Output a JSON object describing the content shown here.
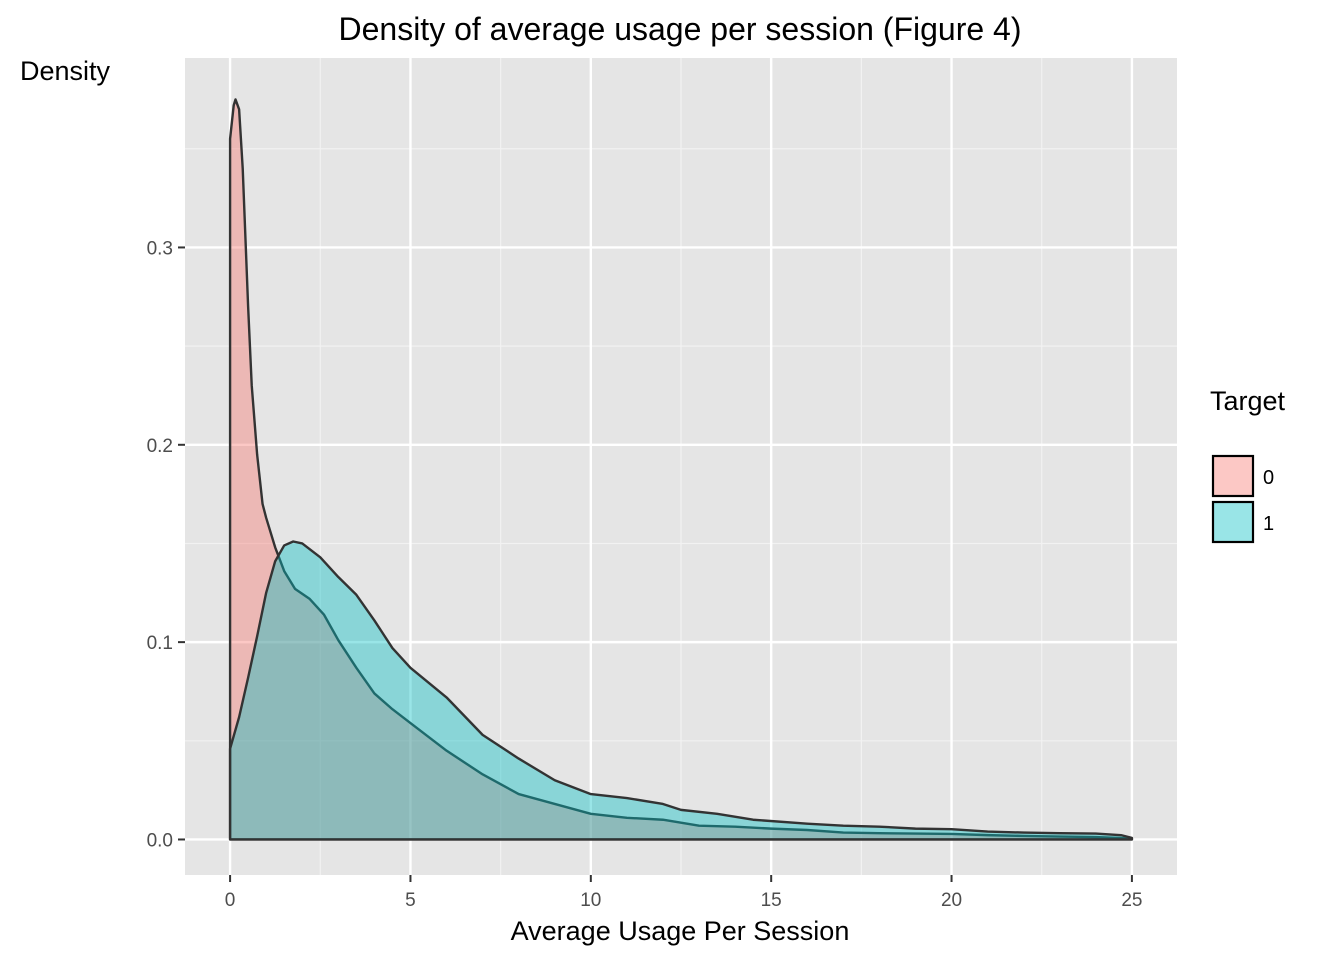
{
  "chart_data": {
    "type": "area",
    "title": "Density of average usage per session (Figure 4)",
    "xlabel": "Average Usage Per Session",
    "ylabel": "Density",
    "xlim": [
      -1.25,
      26.25
    ],
    "ylim": [
      -0.018,
      0.396
    ],
    "x_ticks": [
      0,
      5,
      10,
      15,
      20,
      25
    ],
    "x_tick_labels": [
      "0",
      "5",
      "10",
      "15",
      "20",
      "25"
    ],
    "y_ticks": [
      0.0,
      0.1,
      0.2,
      0.3
    ],
    "y_tick_labels": [
      "0.0",
      "0.1",
      "0.2",
      "0.3"
    ],
    "grid": true,
    "background": "#e5e5e5",
    "legend": {
      "title": "Target",
      "position": "right",
      "entries": [
        "0",
        "1"
      ]
    },
    "series": [
      {
        "name": "0",
        "color": "#F8766D",
        "points": [
          [
            0,
            0.355
          ],
          [
            0.1,
            0.372
          ],
          [
            0.15,
            0.375
          ],
          [
            0.25,
            0.37
          ],
          [
            0.35,
            0.34
          ],
          [
            0.5,
            0.27
          ],
          [
            0.6,
            0.23
          ],
          [
            0.75,
            0.195
          ],
          [
            0.9,
            0.17
          ],
          [
            1.0,
            0.163
          ],
          [
            1.25,
            0.148
          ],
          [
            1.5,
            0.136
          ],
          [
            1.8,
            0.127
          ],
          [
            2.2,
            0.122
          ],
          [
            2.6,
            0.114
          ],
          [
            3.0,
            0.101
          ],
          [
            3.5,
            0.087
          ],
          [
            4.0,
            0.074
          ],
          [
            4.5,
            0.066
          ],
          [
            5.0,
            0.059
          ],
          [
            6.0,
            0.045
          ],
          [
            7.0,
            0.033
          ],
          [
            8.0,
            0.023
          ],
          [
            9.0,
            0.018
          ],
          [
            10.0,
            0.013
          ],
          [
            11.0,
            0.011
          ],
          [
            12.0,
            0.01
          ],
          [
            13.0,
            0.007
          ],
          [
            14.0,
            0.0065
          ],
          [
            15.0,
            0.0055
          ],
          [
            16.0,
            0.0048
          ],
          [
            17.0,
            0.0035
          ],
          [
            18.0,
            0.0032
          ],
          [
            19.0,
            0.003
          ],
          [
            20.0,
            0.0028
          ],
          [
            21.0,
            0.0022
          ],
          [
            22.0,
            0.0018
          ],
          [
            23.0,
            0.0015
          ],
          [
            24.0,
            0.0012
          ],
          [
            25.0,
            0.0005
          ]
        ]
      },
      {
        "name": "1",
        "color": "#00BFC4",
        "points": [
          [
            0,
            0.046
          ],
          [
            0.25,
            0.062
          ],
          [
            0.5,
            0.082
          ],
          [
            0.75,
            0.103
          ],
          [
            1.0,
            0.125
          ],
          [
            1.25,
            0.141
          ],
          [
            1.5,
            0.149
          ],
          [
            1.75,
            0.151
          ],
          [
            2.0,
            0.15
          ],
          [
            2.5,
            0.143
          ],
          [
            3.0,
            0.133
          ],
          [
            3.5,
            0.124
          ],
          [
            4.0,
            0.111
          ],
          [
            4.5,
            0.097
          ],
          [
            5.0,
            0.087
          ],
          [
            6.0,
            0.072
          ],
          [
            7.0,
            0.053
          ],
          [
            8.0,
            0.041
          ],
          [
            9.0,
            0.03
          ],
          [
            10.0,
            0.023
          ],
          [
            11.0,
            0.021
          ],
          [
            12.0,
            0.018
          ],
          [
            12.5,
            0.015
          ],
          [
            13.5,
            0.013
          ],
          [
            14.5,
            0.01
          ],
          [
            16.0,
            0.008
          ],
          [
            17.0,
            0.007
          ],
          [
            18.0,
            0.0065
          ],
          [
            19.0,
            0.0055
          ],
          [
            20.0,
            0.0052
          ],
          [
            21.0,
            0.004
          ],
          [
            22.0,
            0.0035
          ],
          [
            23.0,
            0.0032
          ],
          [
            24.0,
            0.003
          ],
          [
            24.7,
            0.0022
          ],
          [
            25.0,
            0.0008
          ]
        ]
      }
    ]
  }
}
